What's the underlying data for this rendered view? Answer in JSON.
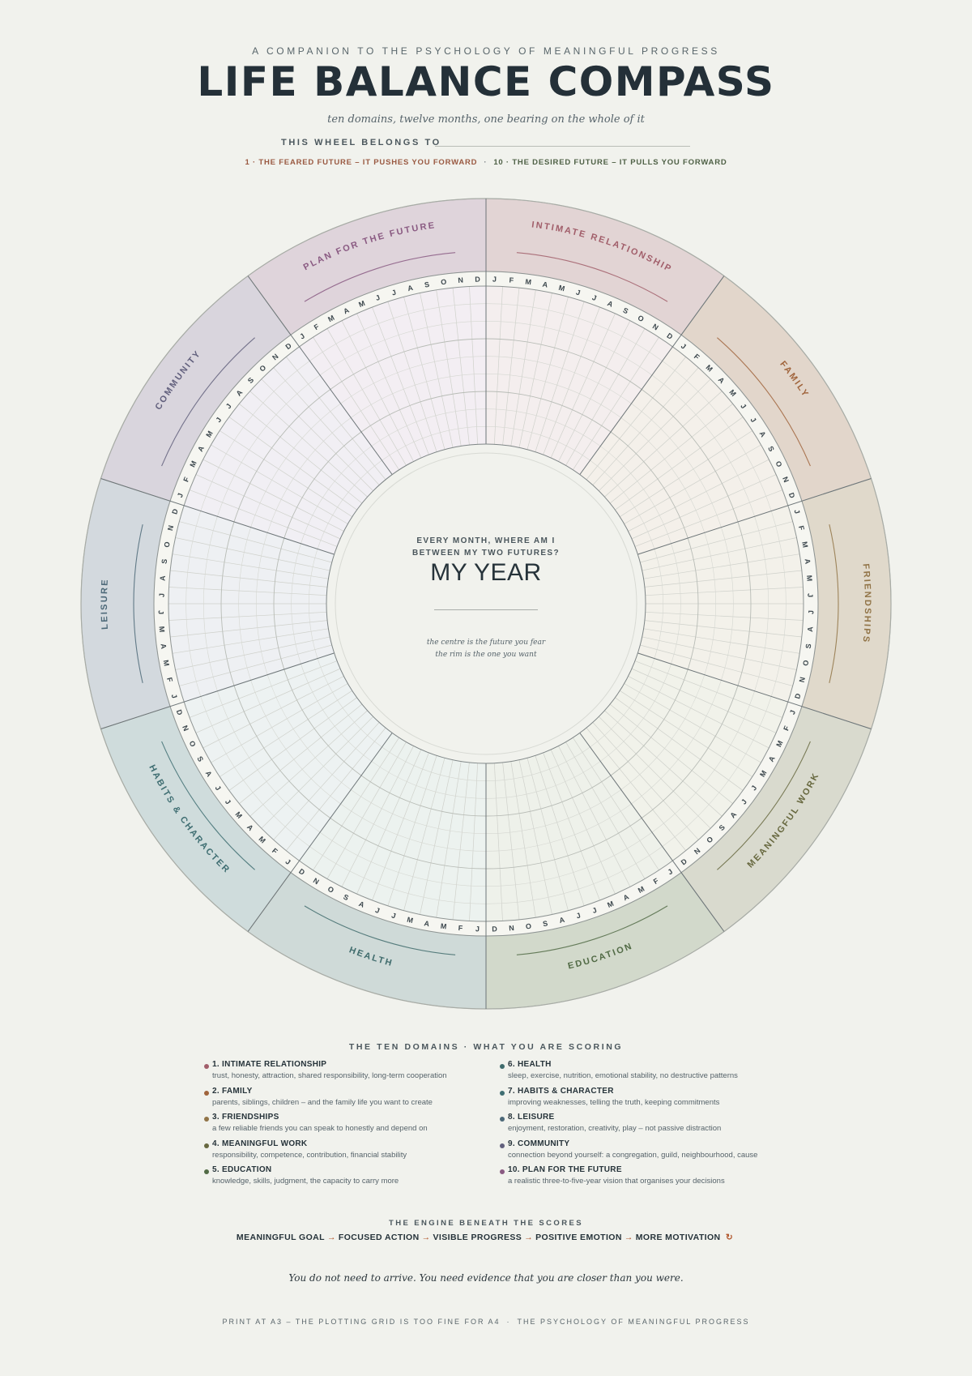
{
  "header": {
    "kicker": "A COMPANION TO THE PSYCHOLOGY OF MEANINGFUL PROGRESS",
    "title": "LIFE BALANCE COMPASS",
    "subtitle": "ten domains, twelve months, one bearing on the whole of it",
    "owner_label": "THIS WHEEL BELONGS TO",
    "feared_future": "1 · THE FEARED FUTURE – IT PUSHES YOU FORWARD",
    "separator": "·",
    "desired_future": "10 · THE DESIRED FUTURE – IT PULLS YOU FORWARD"
  },
  "wheel": {
    "months": [
      "J",
      "F",
      "M",
      "A",
      "M",
      "J",
      "J",
      "A",
      "S",
      "O",
      "N",
      "D"
    ],
    "scale": {
      "min": 1,
      "max": 10
    },
    "domains": [
      {
        "label": "INTIMATE RELATIONSHIP",
        "band": "#e2d4d4",
        "plot": "#f4eeee",
        "accent": "#a15e6a"
      },
      {
        "label": "FAMILY",
        "band": "#e2d6cb",
        "plot": "#f4f0ea",
        "accent": "#a0643c"
      },
      {
        "label": "FRIENDSHIPS",
        "band": "#e0d9cb",
        "plot": "#f3f1ea",
        "accent": "#917447"
      },
      {
        "label": "MEANINGFUL WORK",
        "band": "#d9dace",
        "plot": "#f1f2ea",
        "accent": "#67683f"
      },
      {
        "label": "EDUCATION",
        "band": "#d2d9cb",
        "plot": "#eef1ea",
        "accent": "#526b46"
      },
      {
        "label": "HEALTH",
        "band": "#cfdad8",
        "plot": "#ecf2ef",
        "accent": "#3f6b6c"
      },
      {
        "label": "HABITS & CHARACTER",
        "band": "#cfdcdc",
        "plot": "#edf2f2",
        "accent": "#3f6e72"
      },
      {
        "label": "LEISURE",
        "band": "#d3d9de",
        "plot": "#eef0f3",
        "accent": "#4c6878"
      },
      {
        "label": "COMMUNITY",
        "band": "#d9d5dd",
        "plot": "#f1eff4",
        "accent": "#62607d"
      },
      {
        "label": "PLAN FOR THE FUTURE",
        "band": "#dfd4db",
        "plot": "#f3eef3",
        "accent": "#8a5a82"
      }
    ]
  },
  "center": {
    "question_line1": "EVERY MONTH, WHERE AM I",
    "question_line2": "BETWEEN MY TWO FUTURES?",
    "title": "MY YEAR",
    "note_line1": "the centre is the future you fear",
    "note_line2": "the rim is the one you want"
  },
  "legend": {
    "heading": "THE TEN DOMAINS · WHAT YOU ARE SCORING",
    "items": [
      {
        "name": "1. INTIMATE RELATIONSHIP",
        "desc": "trust, honesty, attraction, shared responsibility, long-term cooperation",
        "color": "#a15e6a"
      },
      {
        "name": "2. FAMILY",
        "desc": "parents, siblings, children – and the family life you want to create",
        "color": "#a0643c"
      },
      {
        "name": "3. FRIENDSHIPS",
        "desc": "a few reliable friends you can speak to honestly and depend on",
        "color": "#917447"
      },
      {
        "name": "4. MEANINGFUL WORK",
        "desc": "responsibility, competence, contribution, financial stability",
        "color": "#67683f"
      },
      {
        "name": "5. EDUCATION",
        "desc": "knowledge, skills, judgment, the capacity to carry more",
        "color": "#526b46"
      },
      {
        "name": "6. HEALTH",
        "desc": "sleep, exercise, nutrition, emotional stability, no destructive patterns",
        "color": "#3f6b6c"
      },
      {
        "name": "7. HABITS & CHARACTER",
        "desc": "improving weaknesses, telling the truth, keeping commitments",
        "color": "#3f6e72"
      },
      {
        "name": "8. LEISURE",
        "desc": "enjoyment, restoration, creativity, play – not passive distraction",
        "color": "#4c6878"
      },
      {
        "name": "9. COMMUNITY",
        "desc": "connection beyond yourself: a congregation, guild, neighbourhood, cause",
        "color": "#62607d"
      },
      {
        "name": "10. PLAN FOR THE FUTURE",
        "desc": "a realistic three-to-five-year vision that organises your decisions",
        "color": "#8a5a82"
      }
    ]
  },
  "engine": {
    "heading": "THE ENGINE BENEATH THE SCORES",
    "steps": [
      "MEANINGFUL GOAL",
      "FOCUSED ACTION",
      "VISIBLE PROGRESS",
      "POSITIVE EMOTION",
      "MORE MOTIVATION"
    ],
    "arrow": "→",
    "loop": "↻"
  },
  "quote": "You do not need to arrive. You need evidence that you are closer than you were.",
  "footer": {
    "left": "PRINT AT A3 – THE PLOTTING GRID IS TOO FINE FOR A4",
    "separator": "·",
    "right": "THE PSYCHOLOGY OF MEANINGFUL PROGRESS"
  }
}
